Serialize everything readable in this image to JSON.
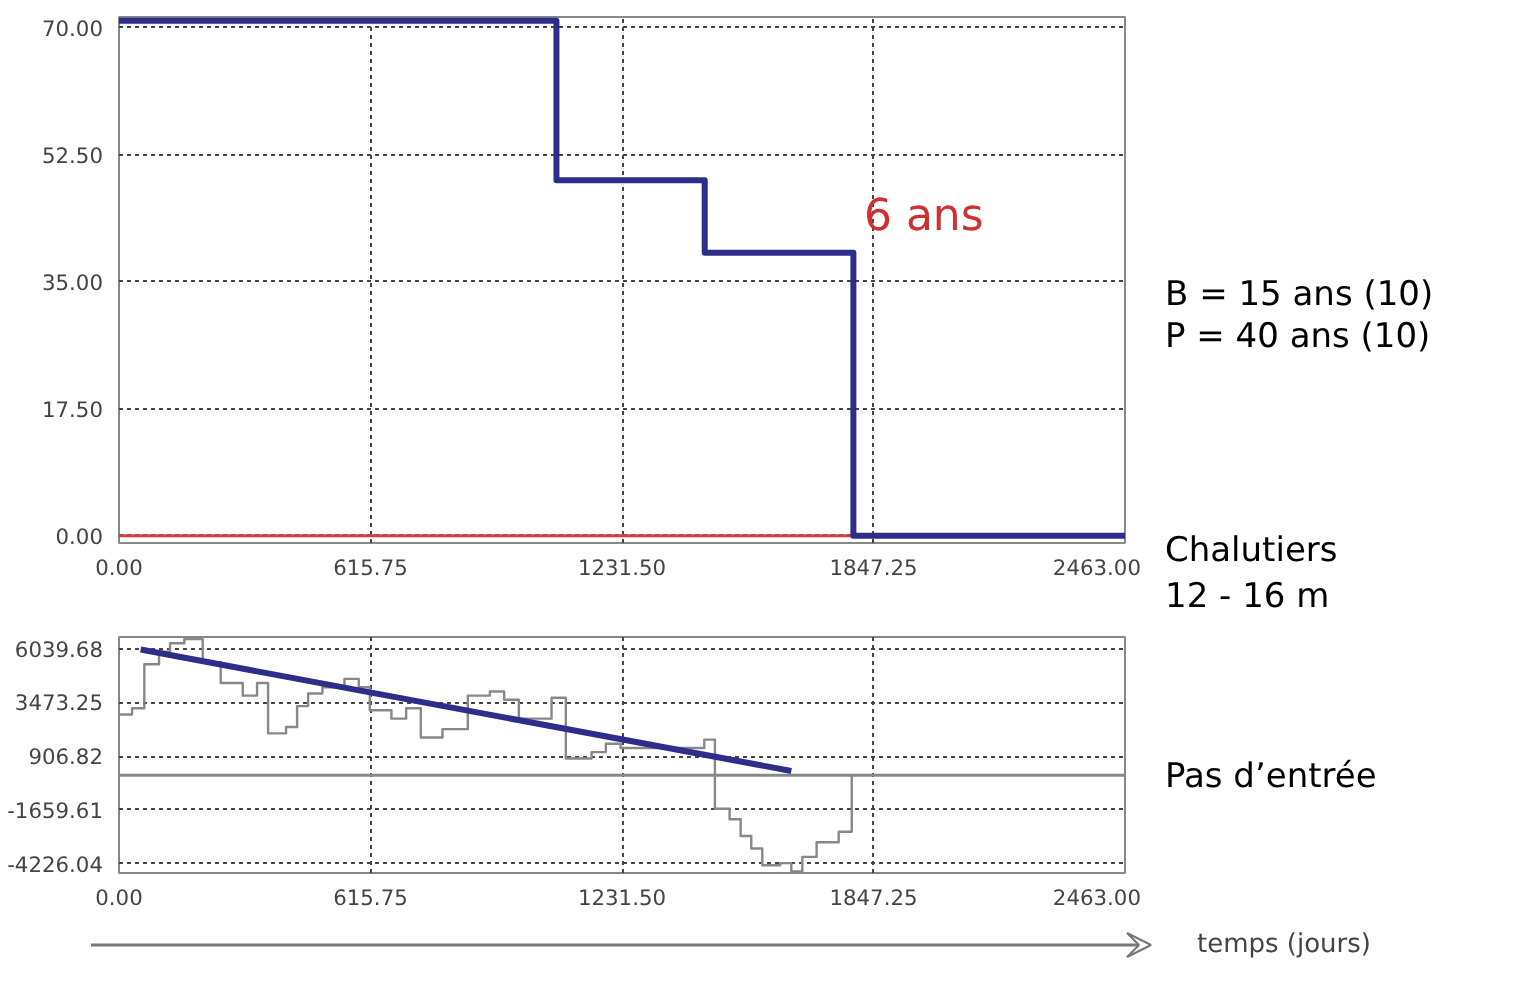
{
  "chart_data": [
    {
      "type": "step",
      "x": [
        0,
        1071,
        1434,
        1798,
        2463
      ],
      "series": [
        {
          "color": "#2e2e8a",
          "values": [
            71,
            49,
            39,
            0,
            0
          ]
        }
      ],
      "xlim": [
        0,
        2463
      ],
      "ylim": [
        -1,
        71.5
      ],
      "xticks": [
        {
          "value": 0,
          "label": "0.00"
        },
        {
          "value": 615.75,
          "label": "615.75"
        },
        {
          "value": 1231.5,
          "label": "1231.50"
        },
        {
          "value": 1847.25,
          "label": "1847.25"
        },
        {
          "value": 2463,
          "label": "2463.00"
        }
      ],
      "yticks": [
        {
          "value": 0,
          "label": "0.00"
        },
        {
          "value": 17.5,
          "label": "17.50"
        },
        {
          "value": 35,
          "label": "35.00"
        },
        {
          "value": 52.5,
          "label": "52.50"
        },
        {
          "value": 70,
          "label": "70.00"
        }
      ],
      "grid": true,
      "ref_lines": [
        {
          "axis": "y",
          "value": 0,
          "color": "#d04040"
        }
      ],
      "annotations": [
        "6 ans",
        "B = 15 ans (10)",
        "P = 40 ans (10)"
      ]
    },
    {
      "type": "step",
      "xlim": [
        0,
        2463
      ],
      "ylim": [
        -4670,
        6600
      ],
      "series": [
        {
          "color": "#888888",
          "x": [
            0,
            32,
            62,
            98,
            125,
            160,
            205,
            249,
            303,
            338,
            365,
            409,
            436,
            463,
            498,
            552,
            587,
            614,
            667,
            703,
            739,
            792,
            854,
            908,
            943,
            979,
            1059,
            1094,
            1157,
            1192,
            1228,
            1433,
            1459,
            1495,
            1522,
            1548,
            1575,
            1619,
            1646,
            1673,
            1708,
            1762,
            1794
          ],
          "values": [
            2900,
            3200,
            5300,
            5900,
            6300,
            6500,
            5400,
            4400,
            3800,
            4400,
            2000,
            2300,
            3300,
            3900,
            4200,
            4600,
            4200,
            3100,
            2700,
            3200,
            1800,
            2200,
            3800,
            4000,
            3600,
            2700,
            3700,
            800,
            1100,
            1500,
            1300,
            1700,
            -1600,
            -2100,
            -2900,
            -3500,
            -4300,
            -4200,
            -4600,
            -3900,
            -3200,
            -2700,
            0
          ]
        },
        {
          "type": "line",
          "color": "#2e2e8a",
          "x": [
            53,
            1646
          ],
          "values": [
            6000,
            200
          ]
        }
      ],
      "xticks": [
        {
          "value": 0,
          "label": "0.00"
        },
        {
          "value": 615.75,
          "label": "615.75"
        },
        {
          "value": 1231.5,
          "label": "1231.50"
        },
        {
          "value": 1847.25,
          "label": "1847.25"
        },
        {
          "value": 2463,
          "label": "2463.00"
        }
      ],
      "yticks": [
        {
          "value": -4226.04,
          "label": "-4226.04"
        },
        {
          "value": -1659.61,
          "label": "-1659.61"
        },
        {
          "value": 906.82,
          "label": "906.82"
        },
        {
          "value": 3473.25,
          "label": "3473.25"
        },
        {
          "value": 6039.68,
          "label": "6039.68"
        }
      ],
      "grid": true,
      "ref_lines": [
        {
          "axis": "y",
          "value": 0,
          "color": "#888888"
        }
      ],
      "xlabel": "temps (jours)",
      "annotations": [
        "Chalutiers",
        "12 - 16 m",
        "Pas d’entrée"
      ]
    }
  ]
}
